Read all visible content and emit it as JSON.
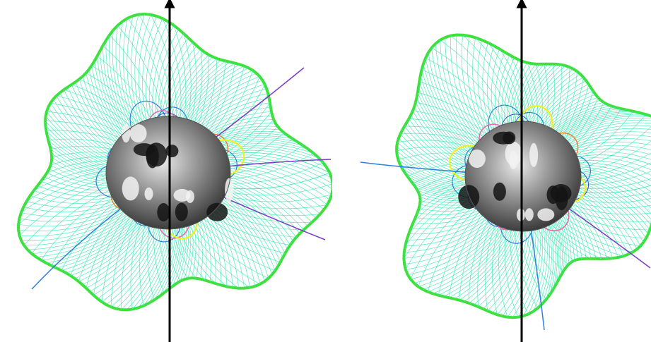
{
  "figure": {
    "panels": [
      {
        "id": "left",
        "view": "first"
      },
      {
        "id": "right",
        "view": "second"
      }
    ]
  },
  "colors": {
    "background": "#ffffff",
    "separatrix_bright_green": "#3ee03a",
    "fieldline_aqua": "#35e8b0",
    "fieldline_blue": "#2f7fe0",
    "fieldline_dark_blue": "#3a46c8",
    "fieldline_purple": "#7a3cc8",
    "fieldline_orange": "#f07a25",
    "fieldline_yellow": "#f4f020",
    "fieldline_pink": "#e86ab0",
    "body_dark": "#141414",
    "body_light": "#f2f2f2",
    "axis_black": "#000000"
  },
  "icons": [
    "vertical-axis-arrow"
  ]
}
